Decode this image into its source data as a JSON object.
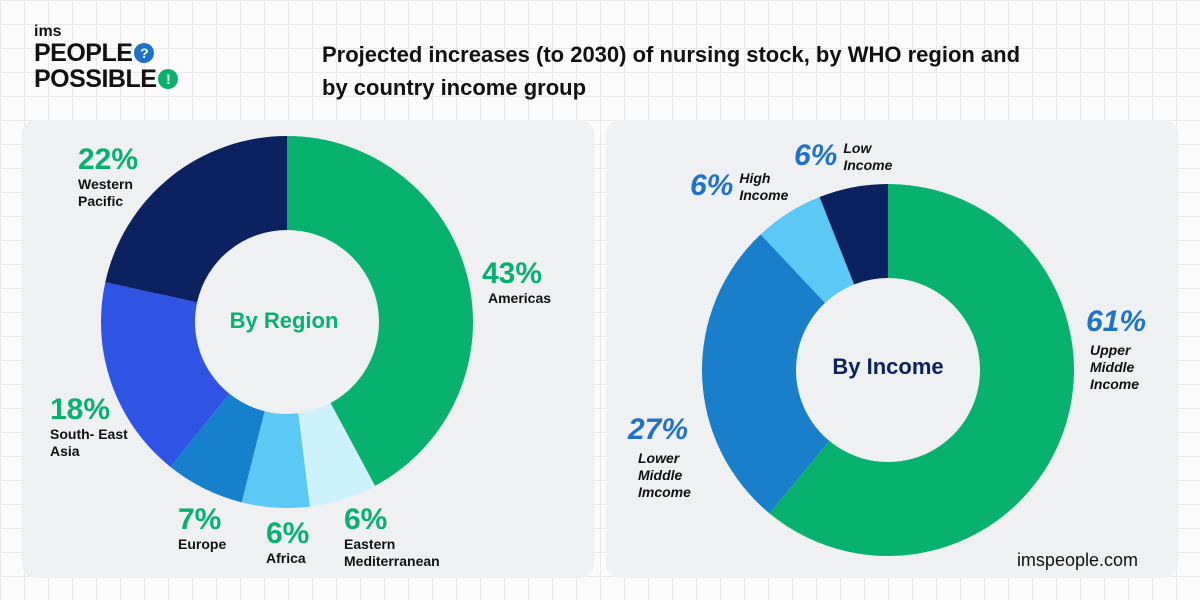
{
  "logo": {
    "top": "ims",
    "line1": "PEOPLE",
    "line1_mark": "?",
    "line2": "POSSIBLE",
    "line2_mark": "!"
  },
  "title": "Projected increases (to 2030) of nursing stock, by WHO region and by country income group",
  "website": "imspeople.com",
  "chart_data": [
    {
      "type": "pie",
      "title": "By Region",
      "categories": [
        "Americas",
        "Eastern Mediterranean",
        "Africa",
        "Europe",
        "South-East Asia",
        "Western Pacific"
      ],
      "values": [
        43,
        6,
        6,
        7,
        18,
        22
      ],
      "labels": [
        "43%",
        "6%",
        "6%",
        "7%",
        "18%",
        "22%"
      ],
      "label_names": [
        "Americas",
        "Eastern Mediterranean",
        "Africa",
        "Europe",
        "South- East Asia",
        "Western Pacific"
      ],
      "colors": [
        "#08b26e",
        "#cdf2fd",
        "#5bc8f6",
        "#1680cc",
        "#2f54e4",
        "#0c2260"
      ]
    },
    {
      "type": "pie",
      "title": "By Income",
      "categories": [
        "Upper Middle Income",
        "Lower Middle Imcome",
        "High Income",
        "Low Income"
      ],
      "values": [
        61,
        27,
        6,
        6
      ],
      "labels": [
        "61%",
        "27%",
        "6%",
        "6%"
      ],
      "label_names": [
        "Upper Middle Income",
        "Lower Middle Imcome",
        "High Income",
        "Low Income"
      ],
      "colors": [
        "#08b26e",
        "#1a7fcb",
        "#5bc8f6",
        "#0c2260"
      ]
    }
  ],
  "colors": {
    "green": "#08b26e",
    "blue": "#1e72c8",
    "dark": "#111111",
    "panel": "#eef0f1"
  }
}
